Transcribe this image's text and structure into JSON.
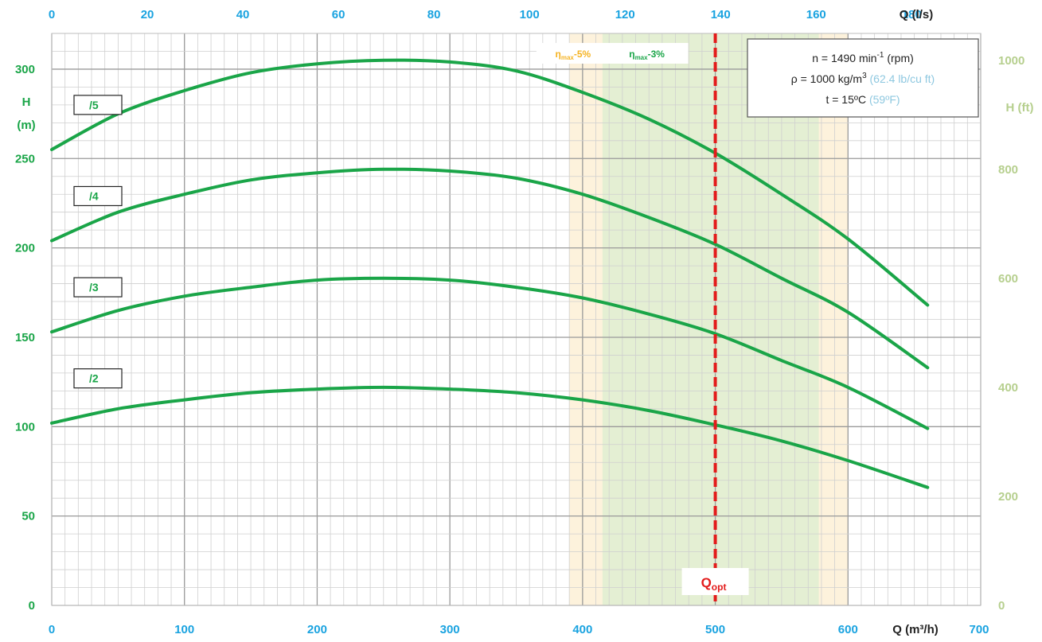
{
  "chart_data": {
    "type": "line",
    "x_bottom": {
      "label": "Q (m³/h)",
      "range": [
        0,
        700
      ],
      "ticks": [
        "0",
        "100",
        "200",
        "300",
        "400",
        "500",
        "600",
        "700"
      ]
    },
    "x_top": {
      "label": "Q (l/s)",
      "range": [
        0,
        180
      ],
      "ticks": [
        "0",
        "20",
        "40",
        "60",
        "80",
        "100",
        "120",
        "140",
        "160",
        "180"
      ]
    },
    "y_left": {
      "label_line1": "H",
      "label_line2": "(m)",
      "range": [
        0,
        320
      ],
      "ticks": [
        "0",
        "50",
        "100",
        "150",
        "200",
        "250",
        "300"
      ]
    },
    "y_right": {
      "label": "H (ft)",
      "ticks": [
        "0",
        "200",
        "400",
        "600",
        "800",
        "1000"
      ]
    },
    "grid": true,
    "series": [
      {
        "name": "/5",
        "x": [
          0,
          50,
          100,
          150,
          200,
          250,
          300,
          350,
          400,
          450,
          500,
          550,
          600,
          660
        ],
        "y": [
          255,
          275,
          288,
          298,
          303,
          305,
          304,
          299,
          287,
          272,
          253,
          230,
          205,
          168
        ]
      },
      {
        "name": "/4",
        "x": [
          0,
          50,
          100,
          150,
          200,
          250,
          300,
          350,
          400,
          450,
          500,
          550,
          600,
          660
        ],
        "y": [
          204,
          220,
          230,
          238,
          242,
          244,
          243,
          239,
          230,
          217,
          202,
          183,
          164,
          133
        ]
      },
      {
        "name": "/3",
        "x": [
          0,
          50,
          100,
          150,
          200,
          250,
          300,
          350,
          400,
          450,
          500,
          550,
          600,
          660
        ],
        "y": [
          153,
          165,
          173,
          178,
          182,
          183,
          182,
          178,
          172,
          163,
          152,
          137,
          122,
          99
        ]
      },
      {
        "name": "/2",
        "x": [
          0,
          50,
          100,
          150,
          200,
          250,
          300,
          350,
          400,
          450,
          500,
          550,
          600,
          660
        ],
        "y": [
          102,
          110,
          115,
          119,
          121,
          122,
          121,
          119,
          115,
          109,
          101,
          92,
          81,
          66
        ]
      }
    ],
    "bands": [
      {
        "label_main": "η",
        "label_sub": "max",
        "label_tail": "-5%",
        "x0": 390,
        "x1": 600,
        "color": "#fdf2dc",
        "text_color": "#f5b323"
      },
      {
        "label_main": "η",
        "label_sub": "max",
        "label_tail": "-3%",
        "x0": 415,
        "x1": 578,
        "color": "#e4efd3",
        "text_color": "#1aa548"
      }
    ],
    "opt_line": {
      "x": 500,
      "label_main": "Q",
      "label_sub": "opt",
      "color": "#e31b1b"
    },
    "info": {
      "line1_pre": "n = 1490 min",
      "line1_sup": "-1",
      "line1_post": " (rpm)",
      "line2_pre": "ρ = 1000 kg/m",
      "line2_sup": "3",
      "line2_blue": " (62.4 lb/cu ft)",
      "line3_pre": "t = 15ºC",
      "line3_blue": " (59ºF)"
    }
  },
  "colors": {
    "curve": "#1aa548",
    "axis_blue": "#1aa3e0",
    "axis_green": "#1aa548",
    "axis_olive": "#b6cf8e",
    "opt": "#e31b1b"
  }
}
